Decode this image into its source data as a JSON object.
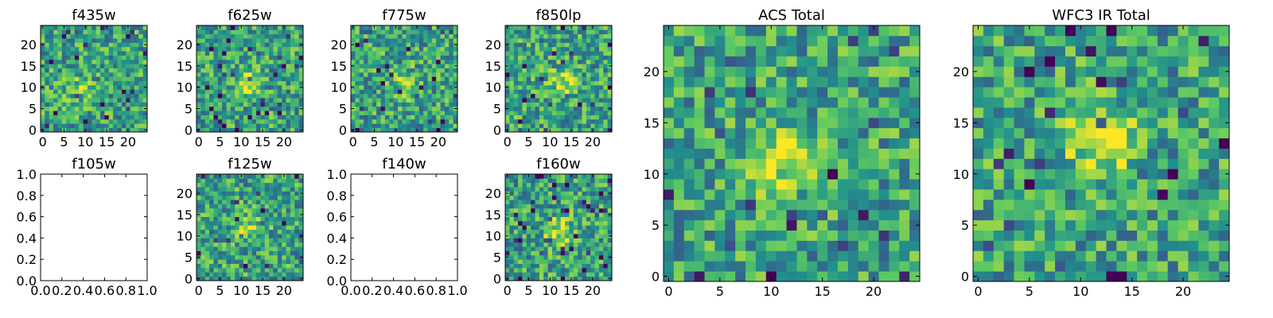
{
  "chart_data": [
    {
      "type": "heatmap",
      "title": "f435w",
      "xticks": [
        "0",
        "5",
        "10",
        "15",
        "20"
      ],
      "yticks": [
        "0",
        "5",
        "10",
        "15",
        "20"
      ],
      "xlim": [
        -0.5,
        24.5
      ],
      "ylim": [
        -0.5,
        24.5
      ],
      "empty": false,
      "seed": 11,
      "blob": {
        "x": 9,
        "y": 9,
        "s": 0.4
      }
    },
    {
      "type": "heatmap",
      "title": "f625w",
      "xticks": [
        "0",
        "5",
        "10",
        "15",
        "20"
      ],
      "yticks": [
        "0",
        "5",
        "10",
        "15",
        "20"
      ],
      "xlim": [
        -0.5,
        24.5
      ],
      "ylim": [
        -0.5,
        24.5
      ],
      "empty": false,
      "seed": 23,
      "blob": {
        "x": 11,
        "y": 11,
        "s": 0.6
      }
    },
    {
      "type": "heatmap",
      "title": "f775w",
      "xticks": [
        "0",
        "5",
        "10",
        "15",
        "20"
      ],
      "yticks": [
        "0",
        "5",
        "10",
        "15",
        "20"
      ],
      "xlim": [
        -0.5,
        24.5
      ],
      "ylim": [
        -0.5,
        24.5
      ],
      "empty": false,
      "seed": 37,
      "blob": {
        "x": 12,
        "y": 11,
        "s": 0.5
      }
    },
    {
      "type": "heatmap",
      "title": "f850lp",
      "xticks": [
        "0",
        "5",
        "10",
        "15",
        "20"
      ],
      "yticks": [
        "0",
        "5",
        "10",
        "15",
        "20"
      ],
      "xlim": [
        -0.5,
        24.5
      ],
      "ylim": [
        -0.5,
        24.5
      ],
      "empty": false,
      "seed": 41,
      "blob": {
        "x": 13,
        "y": 11,
        "s": 0.6
      }
    },
    {
      "type": "heatmap",
      "title": "f105w",
      "xticks": [
        "0.0",
        "0.2",
        "0.4",
        "0.6",
        "0.8",
        "1.0"
      ],
      "yticks": [
        "0.0",
        "0.2",
        "0.4",
        "0.6",
        "0.8",
        "1.0"
      ],
      "xlim": [
        0,
        1
      ],
      "ylim": [
        0,
        1
      ],
      "empty": true
    },
    {
      "type": "heatmap",
      "title": "f125w",
      "xticks": [
        "0",
        "5",
        "10",
        "15",
        "20"
      ],
      "yticks": [
        "0",
        "5",
        "10",
        "15",
        "20"
      ],
      "xlim": [
        -0.5,
        24.5
      ],
      "ylim": [
        -0.5,
        24.5
      ],
      "empty": false,
      "seed": 53,
      "blob": {
        "x": 12,
        "y": 12,
        "s": 0.5
      }
    },
    {
      "type": "heatmap",
      "title": "f140w",
      "xticks": [
        "0.0",
        "0.2",
        "0.4",
        "0.6",
        "0.8",
        "1.0"
      ],
      "yticks": [
        "0.0",
        "0.2",
        "0.4",
        "0.6",
        "0.8",
        "1.0"
      ],
      "xlim": [
        0,
        1
      ],
      "ylim": [
        0,
        1
      ],
      "empty": true
    },
    {
      "type": "heatmap",
      "title": "f160w",
      "xticks": [
        "0",
        "5",
        "10",
        "15",
        "20"
      ],
      "yticks": [
        "0",
        "5",
        "10",
        "15",
        "20"
      ],
      "xlim": [
        -0.5,
        24.5
      ],
      "ylim": [
        -0.5,
        24.5
      ],
      "empty": false,
      "seed": 67,
      "blob": {
        "x": 12,
        "y": 11,
        "s": 0.7
      }
    },
    {
      "type": "heatmap",
      "title": "ACS Total",
      "xticks": [
        "0",
        "5",
        "10",
        "15",
        "20"
      ],
      "yticks": [
        "0",
        "5",
        "10",
        "15",
        "20"
      ],
      "xlim": [
        -0.5,
        24.5
      ],
      "ylim": [
        -0.5,
        24.5
      ],
      "empty": false,
      "seed": 79,
      "blob": {
        "x": 11,
        "y": 11,
        "s": 0.9
      }
    },
    {
      "type": "heatmap",
      "title": "WFC3 IR Total",
      "xticks": [
        "0",
        "5",
        "10",
        "15",
        "20"
      ],
      "yticks": [
        "0",
        "5",
        "10",
        "15",
        "20"
      ],
      "xlim": [
        -0.5,
        24.5
      ],
      "ylim": [
        -0.5,
        24.5
      ],
      "empty": false,
      "seed": 97,
      "blob": {
        "x": 12,
        "y": 13,
        "s": 0.8
      }
    }
  ],
  "colormap": [
    "#440154",
    "#3b528b",
    "#21918c",
    "#5ec962",
    "#fde725"
  ]
}
